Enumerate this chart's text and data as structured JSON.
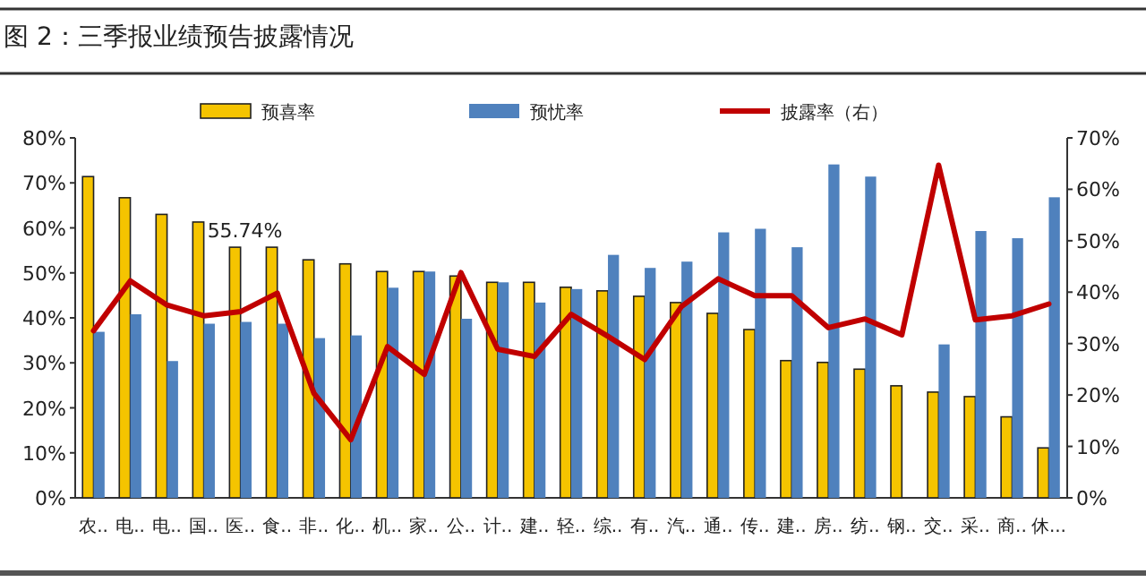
{
  "chart_data": {
    "type": "bar",
    "title": "图 2：三季报业绩预告披露情况",
    "categories": [
      "农..",
      "电..",
      "电..",
      "国..",
      "医..",
      "食..",
      "非..",
      "化..",
      "机..",
      "家..",
      "公..",
      "计..",
      "建..",
      "轻..",
      "综..",
      "有..",
      "汽..",
      "通..",
      "传..",
      "建..",
      "房..",
      "纺..",
      "钢..",
      "交..",
      "采..",
      "商..",
      "休..."
    ],
    "series": [
      {
        "name": "预喜率",
        "color": "#f5c400",
        "values": [
          71.4,
          66.7,
          63.0,
          61.3,
          55.7,
          55.7,
          52.9,
          52.0,
          50.3,
          50.3,
          49.3,
          47.9,
          47.9,
          46.8,
          46.0,
          44.8,
          43.4,
          41.0,
          37.4,
          30.5,
          30.1,
          28.6,
          24.9,
          23.5,
          22.5,
          18.0,
          11.1
        ]
      },
      {
        "name": "预忧率",
        "color": "#4f81bd",
        "values": [
          36.9,
          40.8,
          30.4,
          38.7,
          39.1,
          38.7,
          35.5,
          36.1,
          46.7,
          50.3,
          39.8,
          47.9,
          43.4,
          46.4,
          54.0,
          51.1,
          52.5,
          59.0,
          59.8,
          55.7,
          74.1,
          71.4,
          null,
          34.1,
          59.3,
          57.7,
          66.8
        ]
      },
      {
        "name": "披露率（右）",
        "type": "line",
        "axis": "y2",
        "color": "#c00000",
        "values": [
          32.5,
          42.2,
          37.5,
          35.4,
          36.2,
          39.8,
          20.3,
          11.3,
          29.4,
          24.0,
          43.8,
          28.9,
          27.5,
          35.7,
          31.4,
          26.9,
          37.2,
          42.6,
          39.3,
          39.3,
          33.1,
          34.8,
          31.7,
          64.7,
          34.6,
          35.4,
          37.7
        ]
      }
    ],
    "ylim": [
      0,
      80
    ],
    "yticks": [
      {
        "value": 0,
        "label": "0%"
      },
      {
        "value": 10,
        "label": "10%"
      },
      {
        "value": 20,
        "label": "20%"
      },
      {
        "value": 30,
        "label": "30%"
      },
      {
        "value": 40,
        "label": "40%"
      },
      {
        "value": 50,
        "label": "50%"
      },
      {
        "value": 60,
        "label": "60%"
      },
      {
        "value": 70,
        "label": "70%"
      },
      {
        "value": 80,
        "label": "80%"
      }
    ],
    "y2lim": [
      0,
      70
    ],
    "y2ticks": [
      {
        "value": 0,
        "label": "0%"
      },
      {
        "value": 10,
        "label": "10%"
      },
      {
        "value": 20,
        "label": "20%"
      },
      {
        "value": 30,
        "label": "30%"
      },
      {
        "value": 40,
        "label": "40%"
      },
      {
        "value": 50,
        "label": "50%"
      },
      {
        "value": 60,
        "label": "60%"
      },
      {
        "value": 70,
        "label": "70%"
      }
    ],
    "annotations": [
      "55.74%"
    ],
    "legend": "top",
    "grid": false
  }
}
